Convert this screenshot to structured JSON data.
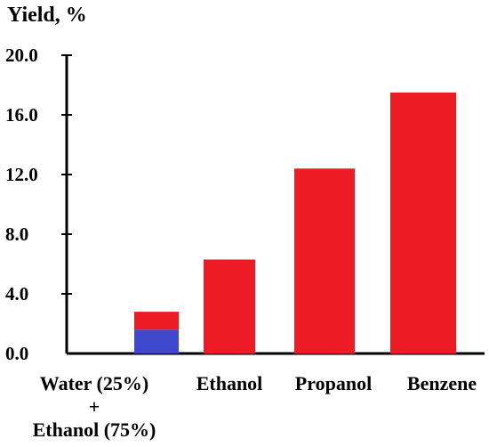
{
  "chart_data": {
    "type": "bar",
    "stacked": true,
    "ylabel": "Yield, %",
    "ylim": [
      0,
      20.0
    ],
    "yticks": [
      "0.0",
      "4.0",
      "8.0",
      "12.0",
      "16.0",
      "20.0"
    ],
    "category_labels": [
      {
        "lines": [
          "Water (25%)",
          "+",
          "Ethanol (75%)"
        ]
      },
      {
        "lines": [
          "Ethanol"
        ]
      },
      {
        "lines": [
          "Propanol"
        ]
      },
      {
        "lines": [
          "Benzene"
        ]
      }
    ],
    "categories": [
      "Water (25%) + Ethanol (75%)",
      "Ethanol",
      "Propanol",
      "Benzene"
    ],
    "series": [
      {
        "color": "#3f48cc",
        "values": [
          1.6,
          0,
          0,
          0
        ]
      },
      {
        "color": "#ed1c24",
        "values": [
          1.2,
          6.3,
          12.4,
          17.5
        ]
      }
    ],
    "grid": false,
    "legend": "none"
  }
}
